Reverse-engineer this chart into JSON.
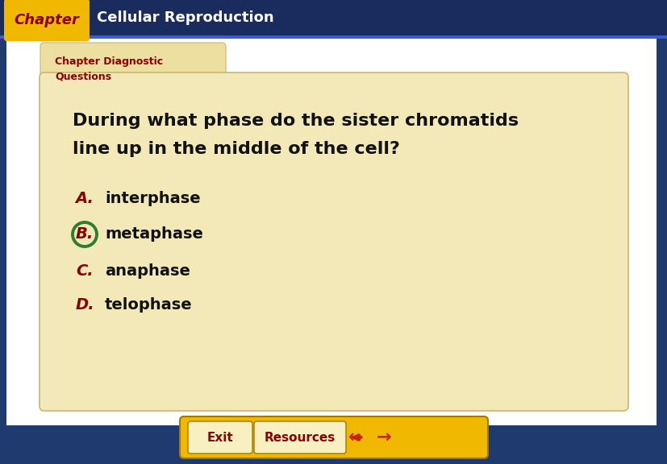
{
  "bg_color": "#1e3a6e",
  "header_bg": "#1e2f6e",
  "header_text": "Cellular Reproduction",
  "header_text_color": "#ffffff",
  "chapter_label": "Chapter",
  "chapter_label_bg": "#f0b800",
  "chapter_label_color": "#8b0000",
  "tab_text": "Chapter Diagnostic\nQuestions",
  "tab_text_color": "#8b0000",
  "tab_bg": "#ecdfa0",
  "card_bg": "#f2e8b8",
  "card_border": "#c8b870",
  "white_bg": "#ffffff",
  "question_text_line1": "During what phase do the sister chromatids",
  "question_text_line2": "line up in the middle of the cell?",
  "question_color": "#111111",
  "options": [
    {
      "label": "A.",
      "text": "interphase",
      "label_color": "#8b0000",
      "circle": false
    },
    {
      "label": "B.",
      "text": "metaphase",
      "label_color": "#8b0000",
      "circle": true
    },
    {
      "label": "C.",
      "text": "anaphase",
      "label_color": "#8b0000",
      "circle": false
    },
    {
      "label": "D.",
      "text": "telophase",
      "label_color": "#8b0000",
      "circle": false
    }
  ],
  "circle_color": "#2e7d32",
  "btn_outer_bg": "#f0b800",
  "btn_inner_bg": "#f8f0c0",
  "btn_border": "#c89000",
  "exit_text": "Exit",
  "resources_text": "Resources",
  "btn_text_color": "#8b0000",
  "arrow_color": "#cc2200"
}
